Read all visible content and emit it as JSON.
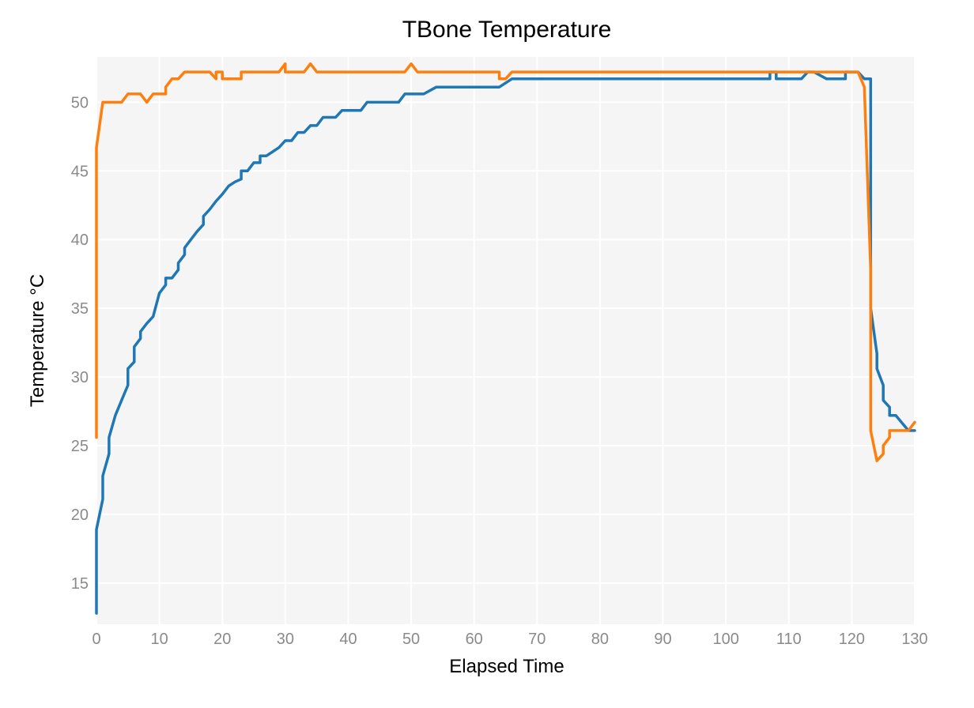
{
  "chart_data": {
    "type": "line",
    "title": "TBone Temperature",
    "xlabel": "Elapsed Time",
    "ylabel": "Temperature °C",
    "xlim": [
      0,
      130
    ],
    "ylim": [
      12,
      53.3
    ],
    "xticks": [
      0,
      10,
      20,
      30,
      40,
      50,
      60,
      70,
      80,
      90,
      100,
      110,
      120,
      130
    ],
    "yticks": [
      15,
      20,
      25,
      30,
      35,
      40,
      45,
      50
    ],
    "grid": true,
    "legend": "none",
    "colors": {
      "background": "#f5f5f5",
      "series1": "#1f77b4",
      "series2": "#ff7f0e"
    },
    "series": [
      {
        "color": "#1f77b4",
        "points": [
          [
            0,
            12.8
          ],
          [
            0,
            18.9
          ],
          [
            1,
            21.1
          ],
          [
            1,
            22.8
          ],
          [
            2,
            24.4
          ],
          [
            2,
            25.6
          ],
          [
            3,
            27.2
          ],
          [
            4,
            28.3
          ],
          [
            5,
            29.4
          ],
          [
            5,
            30.6
          ],
          [
            6,
            31.1
          ],
          [
            6,
            32.2
          ],
          [
            7,
            32.8
          ],
          [
            7,
            33.3
          ],
          [
            8,
            33.9
          ],
          [
            9,
            34.4
          ],
          [
            10,
            36.1
          ],
          [
            11,
            36.7
          ],
          [
            11,
            37.2
          ],
          [
            12,
            37.2
          ],
          [
            13,
            37.8
          ],
          [
            13,
            38.3
          ],
          [
            14,
            38.9
          ],
          [
            14,
            39.4
          ],
          [
            15,
            40.0
          ],
          [
            16,
            40.6
          ],
          [
            17,
            41.1
          ],
          [
            17,
            41.7
          ],
          [
            18,
            42.2
          ],
          [
            19,
            42.8
          ],
          [
            20,
            43.3
          ],
          [
            21,
            43.9
          ],
          [
            22,
            44.2
          ],
          [
            23,
            44.4
          ],
          [
            23,
            45.0
          ],
          [
            24,
            45.0
          ],
          [
            25,
            45.6
          ],
          [
            26,
            45.6
          ],
          [
            26,
            46.1
          ],
          [
            27,
            46.1
          ],
          [
            28,
            46.4
          ],
          [
            29,
            46.7
          ],
          [
            30,
            47.2
          ],
          [
            31,
            47.2
          ],
          [
            32,
            47.8
          ],
          [
            33,
            47.8
          ],
          [
            34,
            48.3
          ],
          [
            35,
            48.3
          ],
          [
            36,
            48.9
          ],
          [
            38,
            48.9
          ],
          [
            39,
            49.4
          ],
          [
            42,
            49.4
          ],
          [
            43,
            50.0
          ],
          [
            48,
            50.0
          ],
          [
            49,
            50.6
          ],
          [
            52,
            50.6
          ],
          [
            54,
            51.1
          ],
          [
            64,
            51.1
          ],
          [
            66,
            51.7
          ],
          [
            107,
            51.7
          ],
          [
            107,
            52.2
          ],
          [
            108,
            52.2
          ],
          [
            108,
            51.7
          ],
          [
            112,
            51.7
          ],
          [
            113,
            52.2
          ],
          [
            114,
            52.2
          ],
          [
            116,
            51.7
          ],
          [
            119,
            51.7
          ],
          [
            119,
            52.2
          ],
          [
            121,
            52.2
          ],
          [
            122,
            51.7
          ],
          [
            123,
            51.7
          ],
          [
            123,
            35.0
          ],
          [
            124,
            31.7
          ],
          [
            124,
            30.6
          ],
          [
            125,
            29.4
          ],
          [
            125,
            28.3
          ],
          [
            126,
            27.8
          ],
          [
            126,
            27.2
          ],
          [
            127,
            27.2
          ],
          [
            129,
            26.1
          ],
          [
            130,
            26.1
          ]
        ]
      },
      {
        "color": "#ff7f0e",
        "points": [
          [
            0,
            25.6
          ],
          [
            0,
            46.7
          ],
          [
            1,
            50.0
          ],
          [
            4,
            50.0
          ],
          [
            5,
            50.6
          ],
          [
            7,
            50.6
          ],
          [
            8,
            50.0
          ],
          [
            9,
            50.6
          ],
          [
            11,
            50.6
          ],
          [
            11,
            51.1
          ],
          [
            12,
            51.7
          ],
          [
            13,
            51.7
          ],
          [
            14,
            52.2
          ],
          [
            18,
            52.2
          ],
          [
            19,
            51.7
          ],
          [
            19,
            52.2
          ],
          [
            20,
            52.2
          ],
          [
            20,
            51.7
          ],
          [
            23,
            51.7
          ],
          [
            23,
            52.2
          ],
          [
            29,
            52.2
          ],
          [
            30,
            52.8
          ],
          [
            30,
            52.2
          ],
          [
            33,
            52.2
          ],
          [
            34,
            52.8
          ],
          [
            35,
            52.2
          ],
          [
            49,
            52.2
          ],
          [
            50,
            52.8
          ],
          [
            51,
            52.2
          ],
          [
            64,
            52.2
          ],
          [
            64,
            51.7
          ],
          [
            65,
            51.7
          ],
          [
            66,
            52.2
          ],
          [
            121,
            52.2
          ],
          [
            122,
            51.1
          ],
          [
            123,
            37.8
          ],
          [
            123,
            26.1
          ],
          [
            124,
            23.9
          ],
          [
            125,
            24.4
          ],
          [
            125,
            25.0
          ],
          [
            126,
            25.6
          ],
          [
            126,
            26.1
          ],
          [
            129,
            26.1
          ],
          [
            130,
            26.7
          ]
        ]
      }
    ]
  }
}
